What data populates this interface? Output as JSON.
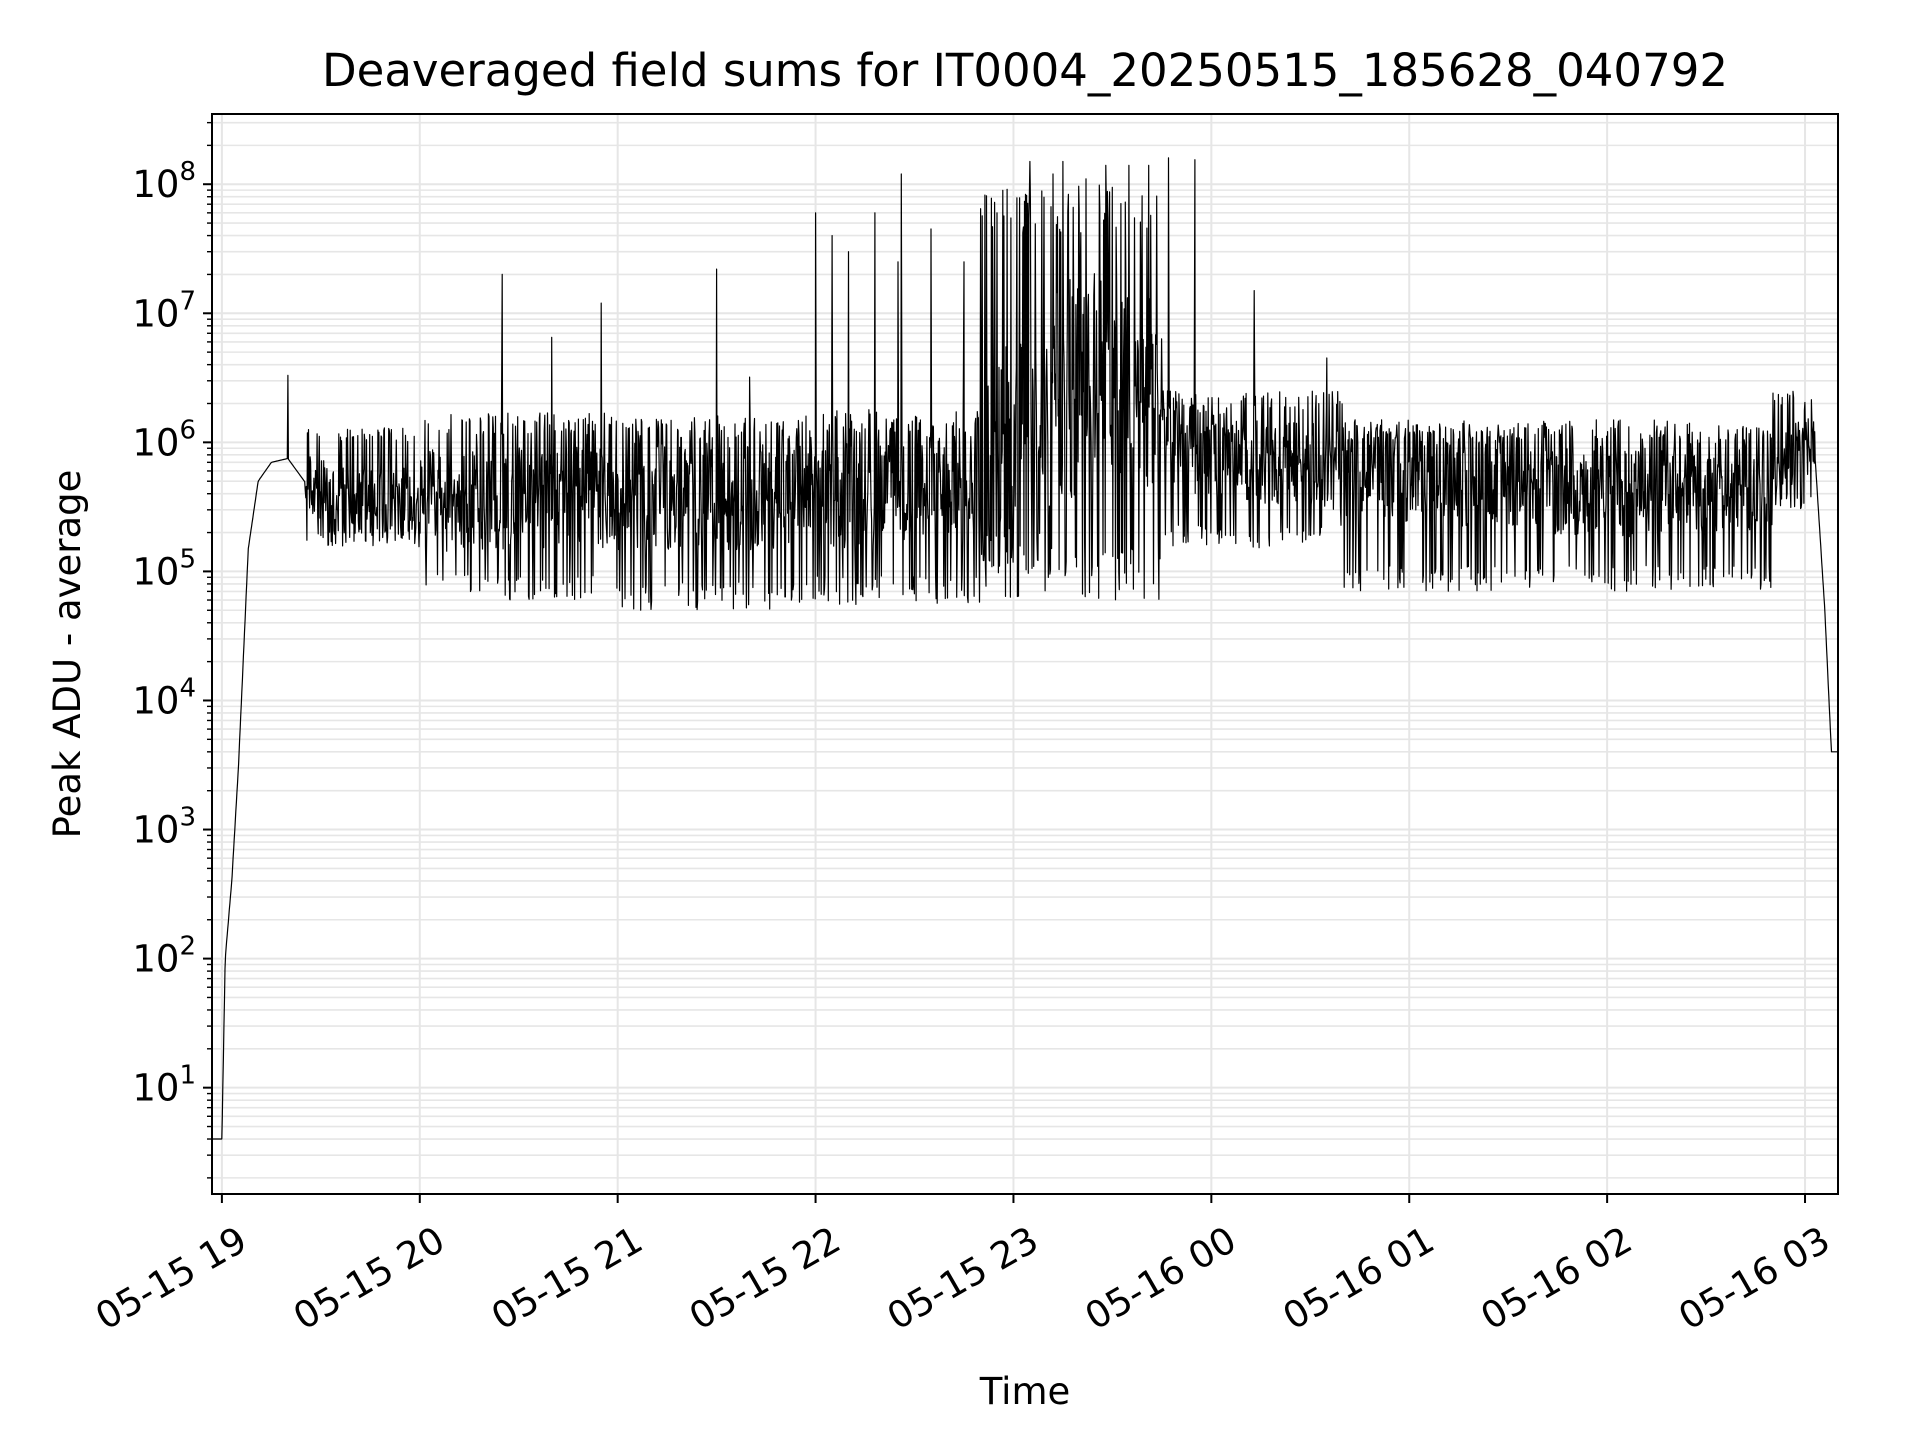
{
  "chart_data": {
    "type": "line",
    "title": "Deaveraged field sums for IT0004_20250515_185628_040792",
    "xlabel": "Time",
    "ylabel": "Peak ADU - average",
    "x_axis": {
      "kind": "datetime",
      "range": [
        "2025-05-15 18:57",
        "2025-05-16 03:10"
      ],
      "ticks": [
        {
          "value": "2025-05-15 19:00",
          "label": "05-15 19"
        },
        {
          "value": "2025-05-15 20:00",
          "label": "05-15 20"
        },
        {
          "value": "2025-05-15 21:00",
          "label": "05-15 21"
        },
        {
          "value": "2025-05-15 22:00",
          "label": "05-15 22"
        },
        {
          "value": "2025-05-15 23:00",
          "label": "05-15 23"
        },
        {
          "value": "2025-05-16 00:00",
          "label": "05-16 00"
        },
        {
          "value": "2025-05-16 01:00",
          "label": "05-16 01"
        },
        {
          "value": "2025-05-16 02:00",
          "label": "05-16 02"
        },
        {
          "value": "2025-05-16 03:00",
          "label": "05-16 03"
        }
      ],
      "tick_rotation_deg": -30
    },
    "y_axis": {
      "scale": "log",
      "range": [
        1.5,
        350000000
      ],
      "ticks": [
        {
          "value": 10,
          "base": "10",
          "exp": "1"
        },
        {
          "value": 100,
          "base": "10",
          "exp": "2"
        },
        {
          "value": 1000,
          "base": "10",
          "exp": "3"
        },
        {
          "value": 10000,
          "base": "10",
          "exp": "4"
        },
        {
          "value": 100000,
          "base": "10",
          "exp": "5"
        },
        {
          "value": 1000000,
          "base": "10",
          "exp": "6"
        },
        {
          "value": 10000000,
          "base": "10",
          "exp": "7"
        },
        {
          "value": 100000000,
          "base": "10",
          "exp": "8"
        }
      ]
    },
    "grid": true,
    "grid_minor_y": true,
    "legend": "none",
    "colors": {
      "line": "#000000",
      "grid": "#e6e6e6",
      "axes": "#000000"
    },
    "series": [
      {
        "profile_points": [
          {
            "x": "2025-05-15 18:57",
            "y": 4
          },
          {
            "x": "2025-05-15 19:00",
            "y": 4
          },
          {
            "x": "2025-05-15 19:01",
            "y": 100
          },
          {
            "x": "2025-05-15 19:03",
            "y": 400
          },
          {
            "x": "2025-05-15 19:05",
            "y": 3000
          },
          {
            "x": "2025-05-15 19:08",
            "y": 150000
          },
          {
            "x": "2025-05-15 19:11",
            "y": 500000
          },
          {
            "x": "2025-05-15 19:15",
            "y": 700000
          },
          {
            "x": "2025-05-15 19:20",
            "y": 750000
          },
          {
            "x": "2025-05-15 19:25",
            "y": 500000
          },
          {
            "x": "2025-05-15 19:35",
            "y": 350000
          },
          {
            "x": "2025-05-15 20:00",
            "y": 350000
          },
          {
            "x": "2025-05-15 21:00",
            "y": 380000
          },
          {
            "x": "2025-05-15 22:00",
            "y": 380000
          },
          {
            "x": "2025-05-15 22:45",
            "y": 450000
          },
          {
            "x": "2025-05-15 23:00",
            "y": 900000
          },
          {
            "x": "2025-05-15 23:20",
            "y": 3000000
          },
          {
            "x": "2025-05-15 23:30",
            "y": 4000000
          },
          {
            "x": "2025-05-15 23:40",
            "y": 2500000
          },
          {
            "x": "2025-05-15 23:50",
            "y": 900000
          },
          {
            "x": "2025-05-16 00:00",
            "y": 800000
          },
          {
            "x": "2025-05-16 00:30",
            "y": 650000
          },
          {
            "x": "2025-05-16 01:00",
            "y": 550000
          },
          {
            "x": "2025-05-16 02:00",
            "y": 420000
          },
          {
            "x": "2025-05-16 02:50",
            "y": 500000
          },
          {
            "x": "2025-05-16 03:00",
            "y": 1100000
          },
          {
            "x": "2025-05-16 03:03",
            "y": 800000
          },
          {
            "x": "2025-05-16 03:06",
            "y": 50000
          },
          {
            "x": "2025-05-16 03:08",
            "y": 4000
          }
        ],
        "spikes": [
          {
            "x": "2025-05-15 19:20",
            "y": 3300000
          },
          {
            "x": "2025-05-15 20:25",
            "y": 20000000
          },
          {
            "x": "2025-05-15 20:40",
            "y": 6500000
          },
          {
            "x": "2025-05-15 20:55",
            "y": 12000000
          },
          {
            "x": "2025-05-15 21:30",
            "y": 22000000
          },
          {
            "x": "2025-05-15 21:40",
            "y": 3200000
          },
          {
            "x": "2025-05-15 22:00",
            "y": 60000000
          },
          {
            "x": "2025-05-15 22:05",
            "y": 40000000
          },
          {
            "x": "2025-05-15 22:10",
            "y": 30000000
          },
          {
            "x": "2025-05-15 22:18",
            "y": 60000000
          },
          {
            "x": "2025-05-15 22:25",
            "y": 25000000
          },
          {
            "x": "2025-05-15 22:26",
            "y": 120000000
          },
          {
            "x": "2025-05-15 22:35",
            "y": 45000000
          },
          {
            "x": "2025-05-15 22:45",
            "y": 25000000
          },
          {
            "x": "2025-05-15 22:55",
            "y": 60000000
          },
          {
            "x": "2025-05-15 23:05",
            "y": 150000000
          },
          {
            "x": "2025-05-15 23:12",
            "y": 120000000
          },
          {
            "x": "2025-05-15 23:15",
            "y": 150000000
          },
          {
            "x": "2025-05-15 23:22",
            "y": 110000000
          },
          {
            "x": "2025-05-15 23:28",
            "y": 140000000
          },
          {
            "x": "2025-05-15 23:35",
            "y": 140000000
          },
          {
            "x": "2025-05-15 23:41",
            "y": 140000000
          },
          {
            "x": "2025-05-15 23:47",
            "y": 160000000
          },
          {
            "x": "2025-05-15 23:55",
            "y": 155000000
          },
          {
            "x": "2025-05-16 00:13",
            "y": 15000000
          },
          {
            "x": "2025-05-16 00:35",
            "y": 4500000
          }
        ],
        "band": [
          {
            "start": "2025-05-15 19:25",
            "end": "2025-05-15 20:00",
            "low": 150000,
            "high": 1300000
          },
          {
            "start": "2025-05-15 20:00",
            "end": "2025-05-15 21:00",
            "low": 60000,
            "high": 1700000
          },
          {
            "start": "2025-05-15 21:00",
            "end": "2025-05-15 22:00",
            "low": 50000,
            "high": 1600000
          },
          {
            "start": "2025-05-15 22:00",
            "end": "2025-05-15 22:50",
            "low": 55000,
            "high": 1800000
          },
          {
            "start": "2025-05-15 22:50",
            "end": "2025-05-15 23:45",
            "low": 60000,
            "high": 100000000
          },
          {
            "start": "2025-05-15 23:45",
            "end": "2025-05-16 00:40",
            "low": 150000,
            "high": 2500000
          },
          {
            "start": "2025-05-16 00:40",
            "end": "2025-05-16 02:50",
            "low": 70000,
            "high": 1500000
          },
          {
            "start": "2025-05-16 02:50",
            "end": "2025-05-16 03:03",
            "low": 300000,
            "high": 2500000
          }
        ]
      }
    ]
  }
}
